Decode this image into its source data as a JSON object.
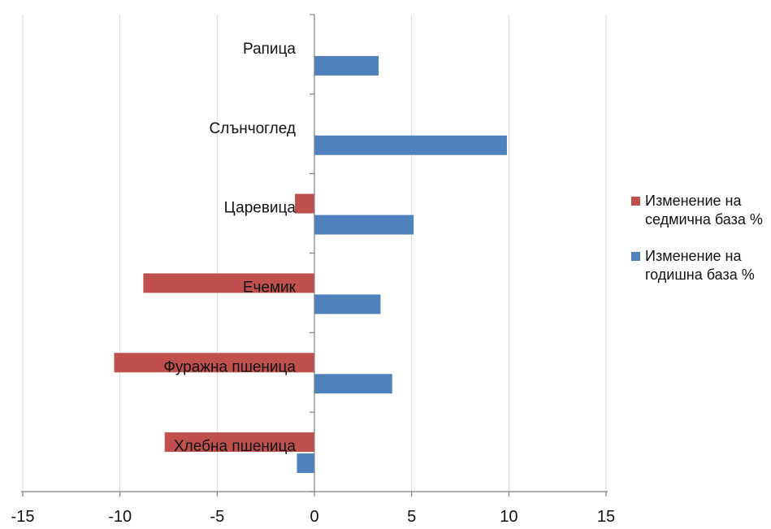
{
  "chart_data": {
    "type": "bar",
    "orientation": "horizontal",
    "categories": [
      "Хлебна пшеница",
      "Фуражна пшеница",
      "Ечемик",
      "Царевица",
      "Слънчоглед",
      "Рапица"
    ],
    "series": [
      {
        "name": "Изменение на седмична база %",
        "color": "#C0504D",
        "values": [
          -7.7,
          -10.3,
          -8.8,
          -1.0,
          0,
          0
        ]
      },
      {
        "name": "Изменение на годишна база %",
        "color": "#4F81BD",
        "values": [
          -0.9,
          4.0,
          3.4,
          5.1,
          9.9,
          3.3
        ]
      }
    ],
    "xlim": [
      -15,
      15
    ],
    "x_ticks": [
      -15,
      -10,
      -5,
      0,
      5,
      10,
      15
    ],
    "x_tick_labels": [
      "-15",
      "-10",
      "-5",
      "0",
      "5",
      "10",
      "15"
    ],
    "grid": "vertical",
    "legend_position": "right"
  }
}
